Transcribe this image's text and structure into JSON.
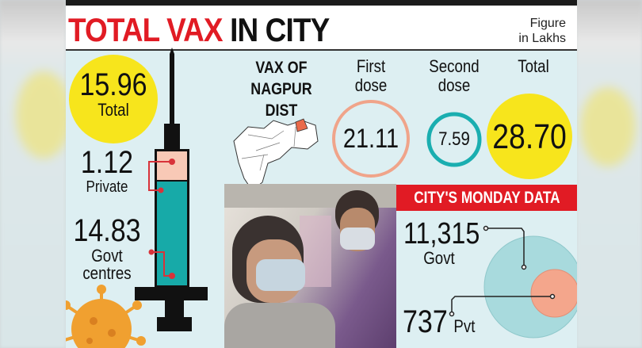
{
  "header": {
    "title_red": "TOTAL VAX",
    "title_black": "IN CITY",
    "units_line1": "Figure",
    "units_line2": "in Lakhs"
  },
  "city_total": {
    "value": "15.96",
    "label": "Total"
  },
  "city_breakdown": {
    "private": {
      "value": "1.12",
      "label": "Private"
    },
    "govt": {
      "value": "14.83",
      "label_line1": "Govt",
      "label_line2": "centres"
    }
  },
  "district": {
    "heading_line1": "VAX OF",
    "heading_line2": "NAGPUR",
    "heading_line3": "DIST",
    "first_dose": {
      "label_line1": "First",
      "label_line2": "dose",
      "value": "21.11"
    },
    "second_dose": {
      "label_line1": "Second",
      "label_line2": "dose",
      "value": "7.59"
    },
    "total": {
      "label": "Total",
      "value": "28.70"
    }
  },
  "monday": {
    "banner": "CITY'S MONDAY DATA",
    "govt": {
      "value": "11,315",
      "label": "Govt"
    },
    "pvt": {
      "value": "737",
      "label": "Pvt"
    }
  },
  "colors": {
    "accent_red": "#e11b24",
    "yellow": "#f7e51c",
    "teal": "#1aaeb0",
    "salmon": "#f4a68c",
    "panel_bg": "#ddeff2"
  }
}
